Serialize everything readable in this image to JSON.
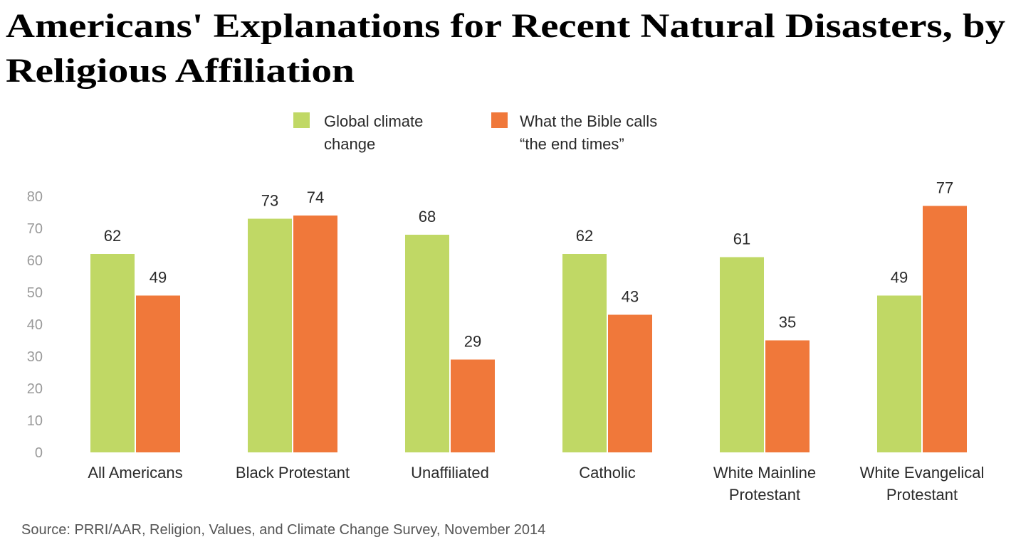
{
  "chart_data": {
    "type": "bar",
    "title_lines": [
      "Americans' Explanations for Recent Natural Disasters, by",
      "Religious Affiliation"
    ],
    "categories": [
      [
        "All Americans"
      ],
      [
        "Black Protestant"
      ],
      [
        "Unaffiliated"
      ],
      [
        "Catholic"
      ],
      [
        "White Mainline",
        "Protestant"
      ],
      [
        "White Evangelical",
        "Protestant"
      ]
    ],
    "series": [
      {
        "name_lines": [
          "Global climate",
          "change"
        ],
        "color": "#c0d865",
        "values": [
          62,
          73,
          68,
          62,
          61,
          49
        ]
      },
      {
        "name_lines": [
          "What the Bible calls",
          "“the end times”"
        ],
        "color": "#f0783a",
        "values": [
          49,
          74,
          29,
          43,
          35,
          77
        ]
      }
    ],
    "yticks": [
      "0",
      "10",
      "20",
      "30",
      "40",
      "50",
      "60",
      "70",
      "80"
    ],
    "ylim": [
      0,
      80
    ],
    "xlabel": "",
    "ylabel": "",
    "grid": false,
    "legend_position": "top-center",
    "source": "Source: PRRI/AAR, Religion, Values, and Climate Change Survey, November 2014"
  }
}
